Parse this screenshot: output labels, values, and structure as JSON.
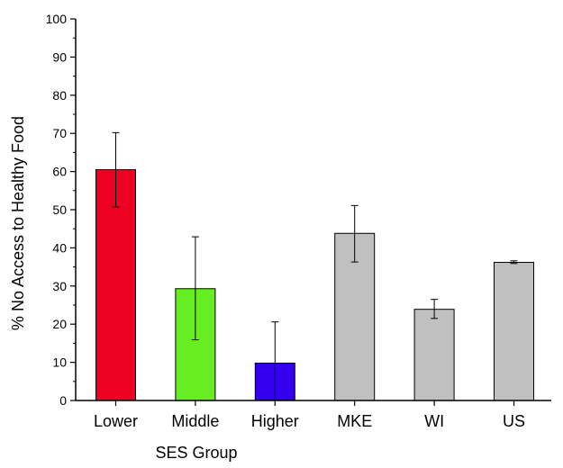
{
  "chart_data": {
    "type": "bar",
    "categories": [
      "Lower",
      "Middle",
      "Higher",
      "MKE",
      "WI",
      "US"
    ],
    "values": [
      60.5,
      29.3,
      9.8,
      43.8,
      23.9,
      36.2
    ],
    "errors": [
      {
        "low": 50.7,
        "high": 70.2
      },
      {
        "low": 15.9,
        "high": 42.9
      },
      {
        "low": 0,
        "high": 20.6
      },
      {
        "low": 36.3,
        "high": 51.1
      },
      {
        "low": 21.5,
        "high": 26.5
      },
      {
        "low": 35.9,
        "high": 36.6
      }
    ],
    "colors": [
      "#ee0022",
      "#66ee22",
      "#3300ee",
      "#c0c0c0",
      "#c0c0c0",
      "#c0c0c0"
    ],
    "xlabel": "SES Group",
    "ylabel": "% No Access to Healthy Food",
    "ylim": [
      0,
      100
    ],
    "yticks": [
      0,
      10,
      20,
      30,
      40,
      50,
      60,
      70,
      80,
      90,
      100
    ],
    "grid": false,
    "legend": "none"
  }
}
